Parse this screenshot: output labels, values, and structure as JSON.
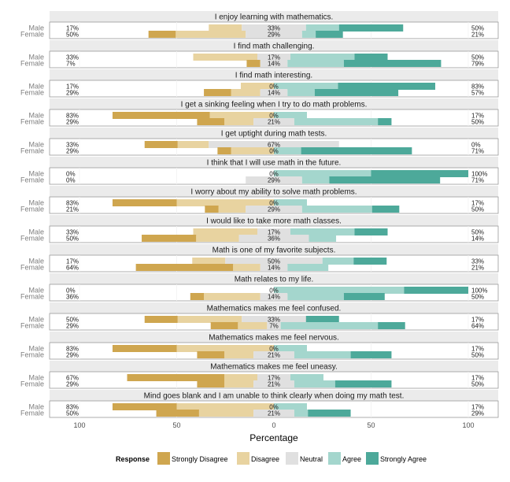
{
  "chart_data": {
    "type": "bar",
    "orientation": "horizontal",
    "layout": "diverging stacked",
    "xlabel": "Percentage",
    "xticks": [
      100,
      50,
      0,
      50,
      100
    ],
    "groups": [
      "Male",
      "Female"
    ],
    "legend": {
      "title": "Response",
      "position": "bottom",
      "levels": [
        "Strongly Disagree",
        "Disagree",
        "Neutral",
        "Agree",
        "Strongly Agree"
      ]
    },
    "colors": {
      "Strongly Disagree": "#CFA64F",
      "Disagree": "#E8D3A0",
      "Neutral": "#E0E0E0",
      "Agree": "#A4D6CD",
      "Strongly Agree": "#4DA99A",
      "strip": "#EBEBEB"
    },
    "panels": [
      {
        "title": "I enjoy learning with mathematics.",
        "rows": [
          {
            "group": "Male",
            "values": [
              0,
              17,
              33,
              17,
              33
            ],
            "low": "17%",
            "neutral": "33%",
            "high": "50%"
          },
          {
            "group": "Female",
            "values": [
              14,
              36,
              29,
              7,
              14
            ],
            "low": "50%",
            "neutral": "29%",
            "high": "21%"
          }
        ]
      },
      {
        "title": "I find math challenging.",
        "rows": [
          {
            "group": "Male",
            "values": [
              0,
              33,
              17,
              33,
              17
            ],
            "low": "33%",
            "neutral": "17%",
            "high": "50%"
          },
          {
            "group": "Female",
            "values": [
              7,
              0,
              14,
              29,
              50
            ],
            "low": "7%",
            "neutral": "14%",
            "high": "79%"
          }
        ]
      },
      {
        "title": "I find math interesting.",
        "rows": [
          {
            "group": "Male",
            "values": [
              0,
              17,
              0,
              33,
              50
            ],
            "low": "17%",
            "neutral": "0%",
            "high": "83%"
          },
          {
            "group": "Female",
            "values": [
              14,
              15,
              14,
              14,
              43
            ],
            "low": "29%",
            "neutral": "14%",
            "high": "57%"
          }
        ]
      },
      {
        "title": "I get a sinking feeling when I try to do math problems.",
        "rows": [
          {
            "group": "Male",
            "values": [
              50,
              33,
              0,
              17,
              0
            ],
            "low": "83%",
            "neutral": "0%",
            "high": "17%"
          },
          {
            "group": "Female",
            "values": [
              14,
              15,
              21,
              43,
              7
            ],
            "low": "29%",
            "neutral": "21%",
            "high": "50%"
          }
        ]
      },
      {
        "title": "I get uptight during math tests.",
        "rows": [
          {
            "group": "Male",
            "values": [
              17,
              16,
              67,
              0,
              0
            ],
            "low": "33%",
            "neutral": "67%",
            "high": "0%"
          },
          {
            "group": "Female",
            "values": [
              7,
              22,
              0,
              14,
              57
            ],
            "low": "29%",
            "neutral": "0%",
            "high": "71%"
          }
        ]
      },
      {
        "title": "I think that I will use math in the future.",
        "rows": [
          {
            "group": "Male",
            "values": [
              0,
              0,
              0,
              50,
              50
            ],
            "low": "0%",
            "neutral": "0%",
            "high": "100%"
          },
          {
            "group": "Female",
            "values": [
              0,
              0,
              29,
              14,
              57
            ],
            "low": "0%",
            "neutral": "29%",
            "high": "71%"
          }
        ]
      },
      {
        "title": "I worry about my ability to solve math problems.",
        "rows": [
          {
            "group": "Male",
            "values": [
              33,
              50,
              0,
              17,
              0
            ],
            "low": "83%",
            "neutral": "0%",
            "high": "17%"
          },
          {
            "group": "Female",
            "values": [
              7,
              14,
              29,
              36,
              14
            ],
            "low": "21%",
            "neutral": "29%",
            "high": "50%"
          }
        ]
      },
      {
        "title": "I would like to take more math classes.",
        "rows": [
          {
            "group": "Male",
            "values": [
              0,
              33,
              17,
              33,
              17
            ],
            "low": "33%",
            "neutral": "17%",
            "high": "50%"
          },
          {
            "group": "Female",
            "values": [
              28,
              22,
              36,
              14,
              0
            ],
            "low": "50%",
            "neutral": "36%",
            "high": "14%"
          }
        ]
      },
      {
        "title": "Math is one of my favorite subjects.",
        "rows": [
          {
            "group": "Male",
            "values": [
              0,
              17,
              50,
              16,
              17
            ],
            "low": "17%",
            "neutral": "50%",
            "high": "33%"
          },
          {
            "group": "Female",
            "values": [
              50,
              14,
              14,
              21,
              0
            ],
            "low": "64%",
            "neutral": "14%",
            "high": "21%"
          }
        ]
      },
      {
        "title": "Math relates to my life.",
        "rows": [
          {
            "group": "Male",
            "values": [
              0,
              0,
              0,
              67,
              33
            ],
            "low": "0%",
            "neutral": "0%",
            "high": "100%"
          },
          {
            "group": "Female",
            "values": [
              7,
              29,
              14,
              29,
              21
            ],
            "low": "36%",
            "neutral": "14%",
            "high": "50%"
          }
        ]
      },
      {
        "title": "Mathematics makes me feel confused.",
        "rows": [
          {
            "group": "Male",
            "values": [
              17,
              33,
              33,
              0,
              17
            ],
            "low": "50%",
            "neutral": "33%",
            "high": "17%"
          },
          {
            "group": "Female",
            "values": [
              14,
              15,
              7,
              50,
              14
            ],
            "low": "29%",
            "neutral": "7%",
            "high": "64%"
          }
        ]
      },
      {
        "title": "Mathematics makes me feel nervous.",
        "rows": [
          {
            "group": "Male",
            "values": [
              33,
              50,
              0,
              17,
              0
            ],
            "low": "83%",
            "neutral": "0%",
            "high": "17%"
          },
          {
            "group": "Female",
            "values": [
              14,
              15,
              21,
              29,
              21
            ],
            "low": "29%",
            "neutral": "21%",
            "high": "50%"
          }
        ]
      },
      {
        "title": "Mathematics makes me feel uneasy.",
        "rows": [
          {
            "group": "Male",
            "values": [
              50,
              17,
              17,
              17,
              0
            ],
            "low": "67%",
            "neutral": "17%",
            "high": "17%"
          },
          {
            "group": "Female",
            "values": [
              14,
              15,
              21,
              21,
              29
            ],
            "low": "29%",
            "neutral": "21%",
            "high": "50%"
          }
        ]
      },
      {
        "title": "Mind goes blank and I am unable to think clearly when doing my math test.",
        "rows": [
          {
            "group": "Male",
            "values": [
              33,
              50,
              0,
              17,
              0
            ],
            "low": "83%",
            "neutral": "0%",
            "high": "17%"
          },
          {
            "group": "Female",
            "values": [
              22,
              28,
              21,
              7,
              22
            ],
            "low": "50%",
            "neutral": "21%",
            "high": "29%"
          }
        ]
      }
    ]
  }
}
